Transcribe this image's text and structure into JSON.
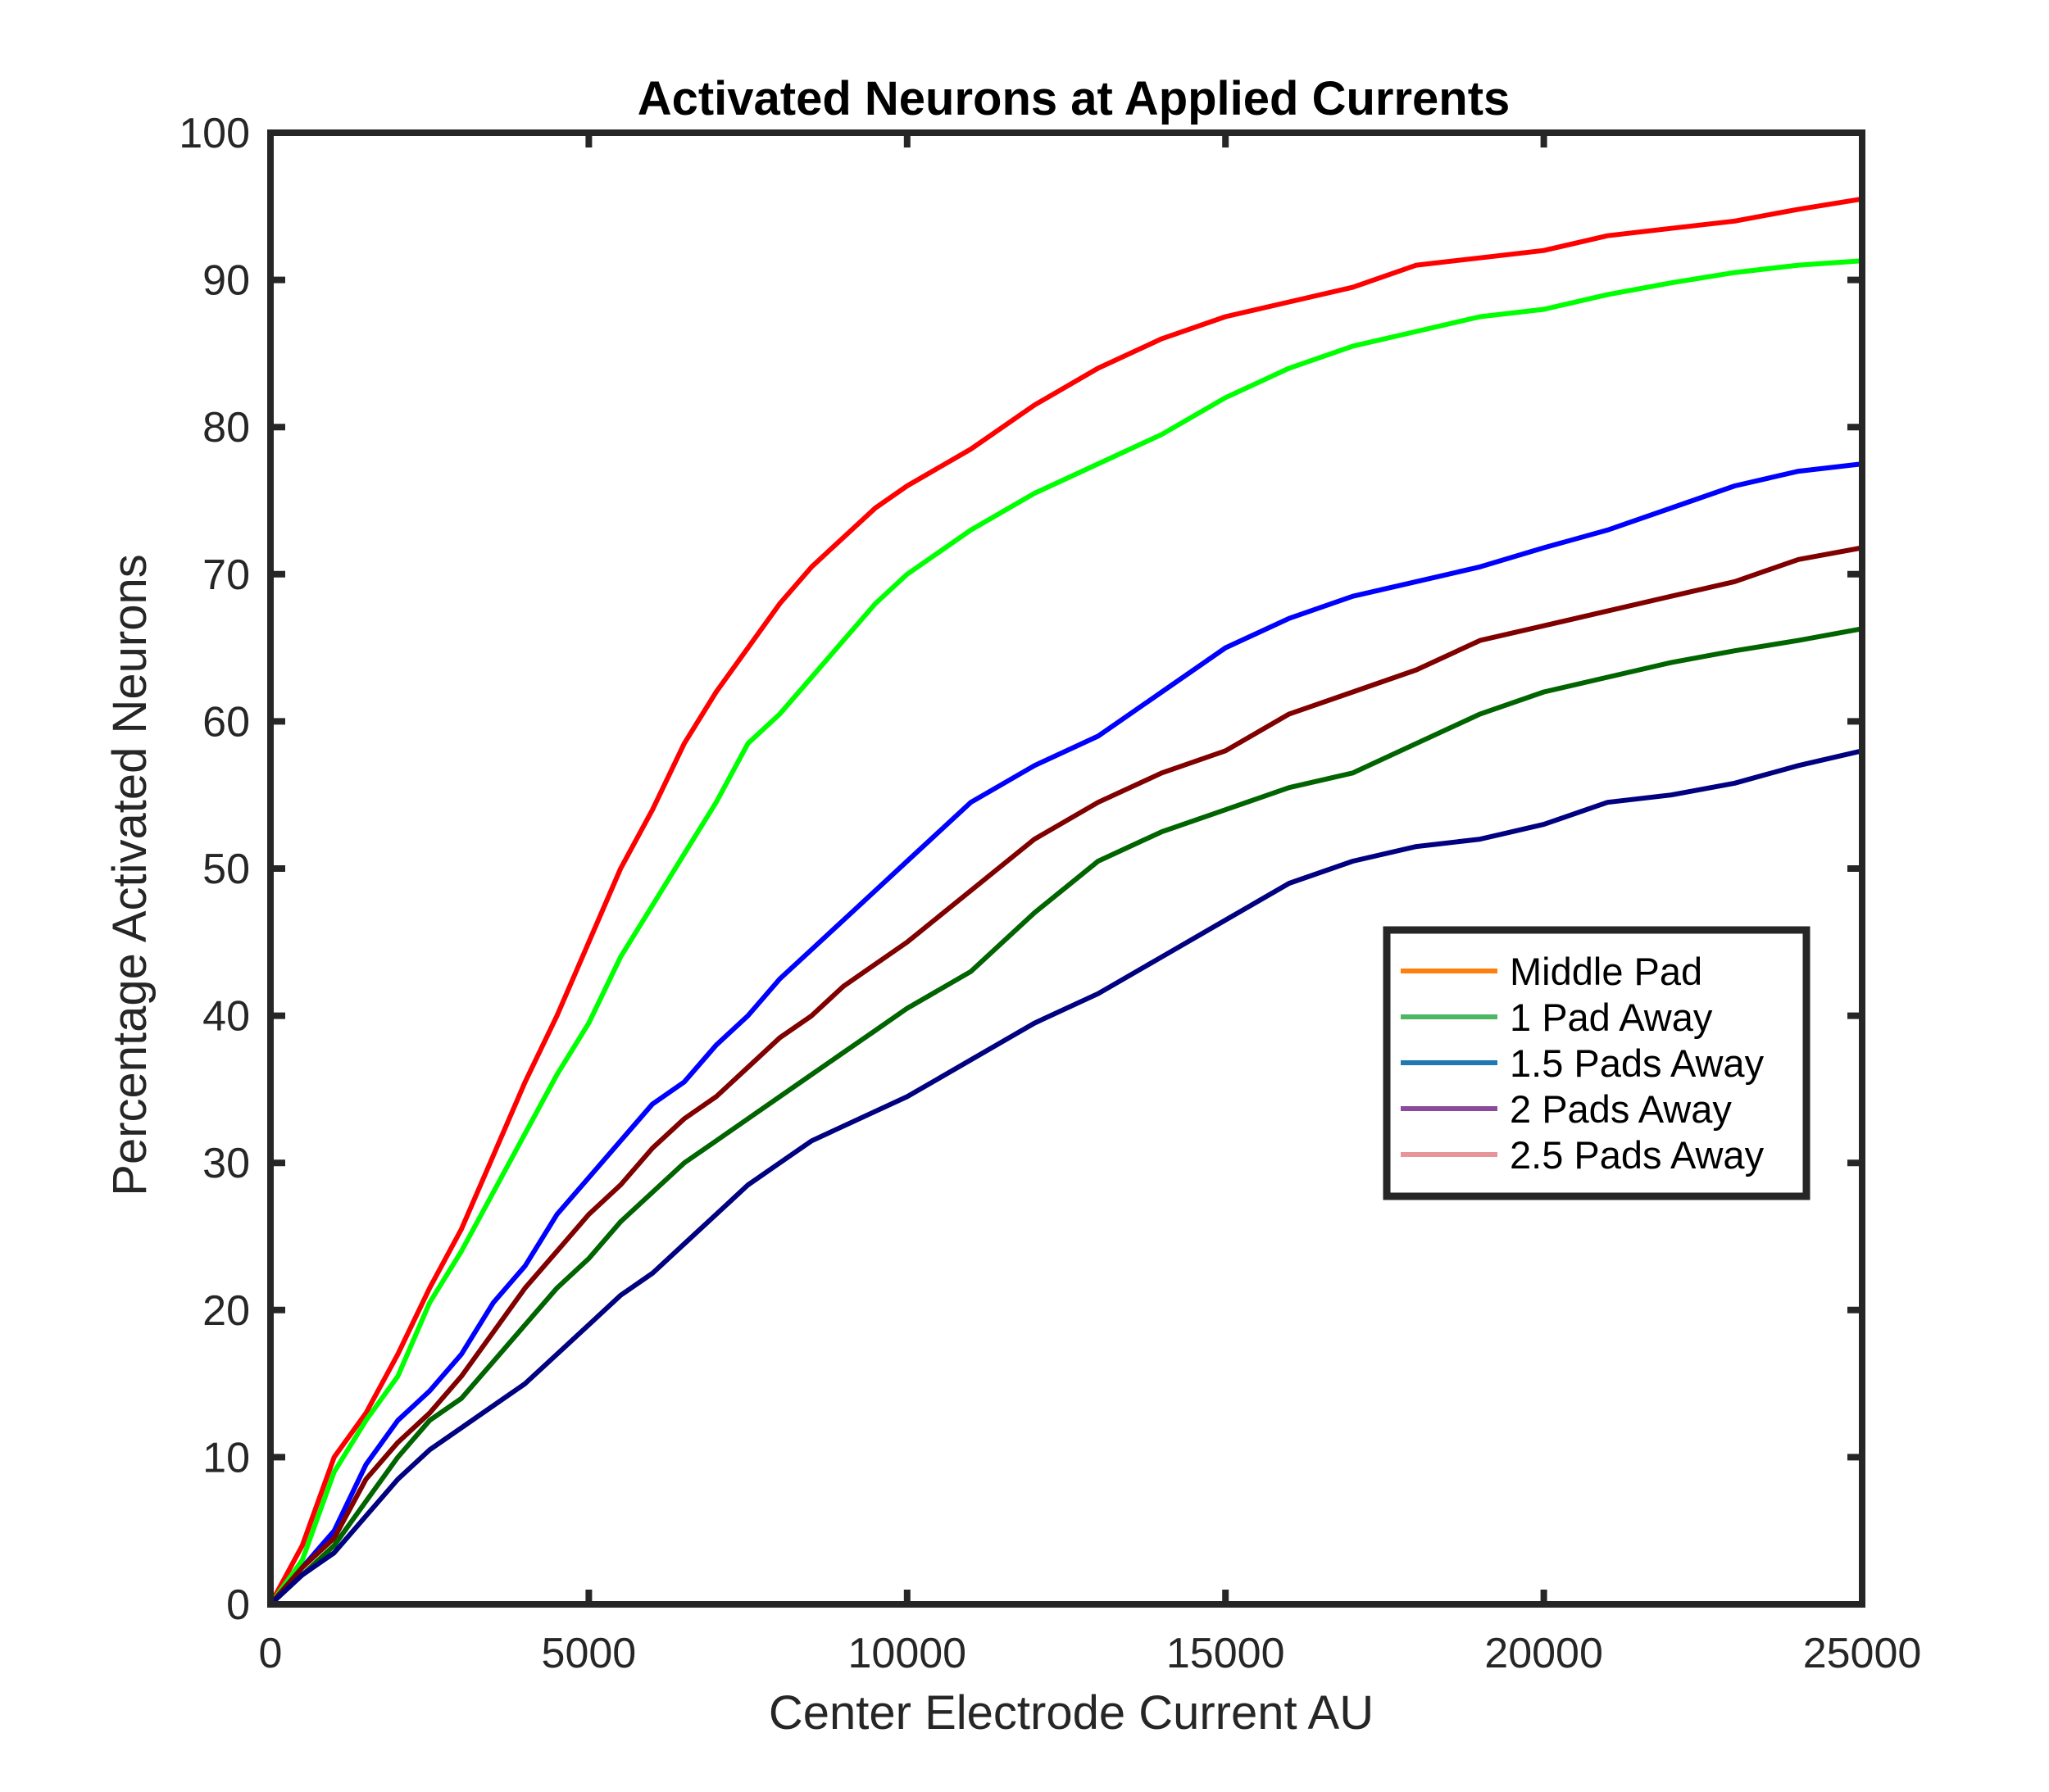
{
  "chart_data": {
    "type": "line",
    "title": "Activated Neurons at Applied Currents",
    "xlabel": "Center Electrode Current AU",
    "ylabel": "Percentage Activated Neurons",
    "xlim": [
      0,
      25000
    ],
    "ylim": [
      0,
      100
    ],
    "xticks": [
      "0",
      "5000",
      "10000",
      "15000",
      "20000",
      "25000"
    ],
    "yticks": [
      "0",
      "10",
      "20",
      "30",
      "40",
      "50",
      "60",
      "70",
      "80",
      "90",
      "100"
    ],
    "grid": false,
    "legend_position": "lower-right",
    "x": [
      0,
      500,
      1000,
      1500,
      2000,
      2500,
      3000,
      3500,
      4000,
      4500,
      5000,
      5500,
      6000,
      6500,
      7000,
      7500,
      8000,
      8500,
      9000,
      9500,
      10000,
      11000,
      12000,
      13000,
      14000,
      15000,
      16000,
      17000,
      18000,
      19000,
      20000,
      21000,
      22000,
      23000,
      24000,
      25000
    ],
    "series": [
      {
        "name": "Middle Pad",
        "legend_color": "#ff7f0e",
        "line_color": "#ff0000",
        "values": [
          0,
          4,
          10,
          13,
          17,
          21.5,
          25.5,
          30.5,
          35.5,
          40,
          45,
          50,
          54,
          58.5,
          62,
          65,
          68,
          70.5,
          72.5,
          74.5,
          76,
          78.5,
          81.5,
          84,
          86,
          87.5,
          88.5,
          89.5,
          91,
          91.5,
          92,
          93,
          93.5,
          94,
          94.8,
          95.5
        ]
      },
      {
        "name": "1 Pad Away",
        "legend_color": "#4cb862",
        "line_color": "#00ff00",
        "values": [
          0,
          3,
          9,
          12.5,
          15.5,
          20.5,
          24,
          28,
          32,
          36,
          39.5,
          44,
          47.5,
          51,
          54.5,
          58.5,
          60.5,
          63,
          65.5,
          68,
          70,
          73,
          75.5,
          77.5,
          79.5,
          82,
          84,
          85.5,
          86.5,
          87.5,
          88,
          89,
          89.8,
          90.5,
          91,
          91.3
        ]
      },
      {
        "name": "1.5 Pads Away",
        "legend_color": "#1f77b4",
        "line_color": "#0000ff",
        "values": [
          0,
          2.5,
          5,
          9.5,
          12.5,
          14.5,
          17,
          20.5,
          23,
          26.5,
          29,
          31.5,
          34,
          35.5,
          38,
          40,
          42.5,
          44.5,
          46.5,
          48.5,
          50.5,
          54.5,
          57,
          59,
          62,
          65,
          67,
          68.5,
          69.5,
          70.5,
          71.8,
          73,
          74.5,
          76,
          77,
          77.5
        ]
      },
      {
        "name": "2 Pads Away",
        "legend_color": "#8c4a9c",
        "line_color": "#800000",
        "values": [
          0,
          2.5,
          4.5,
          8.5,
          11,
          13,
          15.5,
          18.5,
          21.5,
          24,
          26.5,
          28.5,
          31,
          33,
          34.5,
          36.5,
          38.5,
          40,
          42,
          43.5,
          45,
          48.5,
          52,
          54.5,
          56.5,
          58,
          60.5,
          62,
          63.5,
          65.5,
          66.5,
          67.5,
          68.5,
          69.5,
          71,
          71.8
        ]
      },
      {
        "name": "2.5 Pads Away",
        "legend_color": "#e8959a",
        "line_color": "#006400",
        "values": [
          0,
          2,
          4,
          7,
          10,
          12.5,
          14,
          16.5,
          19,
          21.5,
          23.5,
          26,
          28,
          30,
          31.5,
          33,
          34.5,
          36,
          37.5,
          39,
          40.5,
          43,
          47,
          50.5,
          52.5,
          54,
          55.5,
          56.5,
          58.5,
          60.5,
          62,
          63,
          64,
          64.8,
          65.5,
          66.3
        ]
      },
      {
        "name": "",
        "legend_color": "",
        "line_color": "#000080",
        "values": [
          0,
          2,
          3.5,
          6,
          8.5,
          10.5,
          12,
          13.5,
          15,
          17,
          19,
          21,
          22.5,
          24.5,
          26.5,
          28.5,
          30,
          31.5,
          32.5,
          33.5,
          34.5,
          37,
          39.5,
          41.5,
          44,
          46.5,
          49,
          50.5,
          51.5,
          52,
          53,
          54.5,
          55,
          55.8,
          57,
          58
        ]
      }
    ]
  }
}
